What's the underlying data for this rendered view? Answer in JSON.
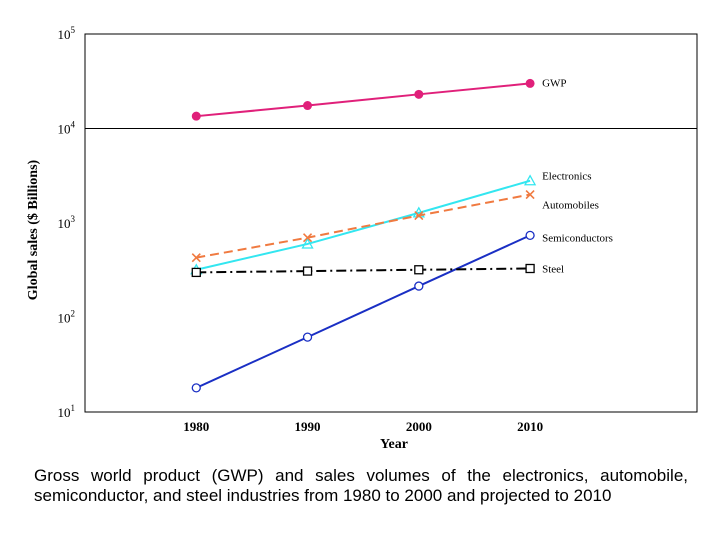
{
  "chart_data": {
    "type": "line",
    "y_scale": "log",
    "ylim": [
      10,
      100000
    ],
    "xlim": [
      1970,
      2025
    ],
    "categories": [
      1980,
      1990,
      2000,
      2010
    ],
    "xlabel": "Year",
    "ylabel": "Global sales ($ Billions)",
    "x_tick_labels": [
      "1980",
      "1990",
      "2000",
      "2010"
    ],
    "y_tick_labels": [
      {
        "base": "10",
        "exp": "1",
        "value": 10
      },
      {
        "base": "10",
        "exp": "2",
        "value": 100
      },
      {
        "base": "10",
        "exp": "3",
        "value": 1000
      },
      {
        "base": "10",
        "exp": "4",
        "value": 10000
      },
      {
        "base": "10",
        "exp": "5",
        "value": 100000
      }
    ],
    "reference_line_y": 10000,
    "grid": false,
    "series": [
      {
        "name": "GWP",
        "values": [
          13500,
          17500,
          23000,
          30000
        ],
        "color": "#e0207a",
        "marker": "filled-circle",
        "dash": "solid"
      },
      {
        "name": "Electronics",
        "values": [
          320,
          600,
          1280,
          2800
        ],
        "color": "#33e6f0",
        "marker": "triangle",
        "dash": "solid"
      },
      {
        "name": "Automobiles",
        "values": [
          430,
          700,
          1200,
          2000
        ],
        "color": "#f07a40",
        "marker": "x",
        "dash": "dashed"
      },
      {
        "name": "Semiconductors",
        "values": [
          18,
          62,
          215,
          740
        ],
        "color": "#1a2fc4",
        "marker": "open-circle",
        "dash": "solid"
      },
      {
        "name": "Steel",
        "values": [
          300,
          310,
          320,
          330
        ],
        "color": "#000000",
        "marker": "open-square",
        "dash": "dashdot"
      }
    ]
  },
  "caption": "Gross world product (GWP) and sales volumes of the electronics, automobile, semiconductor, and steel industries from 1980 to 2000 and projected to 2010"
}
